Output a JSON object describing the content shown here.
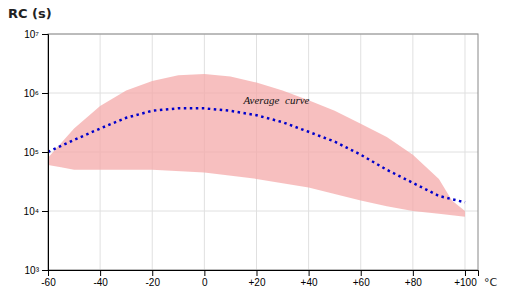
{
  "chart_data": {
    "type": "line",
    "title": "RC (s)",
    "xlabel": "°C",
    "log": "y",
    "grid": true,
    "xlim": [
      -60,
      105
    ],
    "ylim": [
      1000,
      10000000
    ],
    "xticks": [
      -60,
      -40,
      -20,
      0,
      {
        "value": 20,
        "label": "+20"
      },
      {
        "value": 40,
        "label": "+40"
      },
      {
        "value": 60,
        "label": "+60"
      },
      {
        "value": 80,
        "label": "+80"
      },
      {
        "value": 100,
        "label": "+100"
      }
    ],
    "yticks": [
      {
        "value": 1000,
        "label": "10³"
      },
      {
        "value": 10000,
        "label": "10⁴"
      },
      {
        "value": 100000,
        "label": "10⁵"
      },
      {
        "value": 1000000,
        "label": "10⁶"
      },
      {
        "value": 10000000,
        "label": "10⁷"
      }
    ],
    "series": [
      {
        "type": "band",
        "color": "#f4aaaa",
        "upper": {
          "x": [
            -60,
            -50,
            -40,
            -30,
            -20,
            -10,
            0,
            10,
            20,
            30,
            40,
            50,
            60,
            70,
            80,
            90,
            95,
            100
          ],
          "values": [
            80000,
            250000,
            600000,
            1100000,
            1600000,
            2000000,
            2100000,
            1900000,
            1500000,
            1100000,
            750000,
            500000,
            300000,
            180000,
            90000,
            35000,
            15000,
            10000
          ]
        },
        "lower": {
          "x": [
            -60,
            -55,
            -50,
            -40,
            -20,
            0,
            20,
            40,
            60,
            70,
            80,
            90,
            95,
            100
          ],
          "values": [
            60000,
            55000,
            50000,
            50000,
            50000,
            45000,
            35000,
            25000,
            15000,
            12000,
            10000,
            9000,
            8500,
            8000
          ]
        }
      },
      {
        "type": "line",
        "color": "#0000cc",
        "line_style": "dotted",
        "x": [
          -60,
          -50,
          -40,
          -30,
          -20,
          -10,
          0,
          10,
          20,
          30,
          40,
          50,
          60,
          70,
          80,
          90,
          100
        ],
        "values": [
          100000,
          160000,
          250000,
          380000,
          500000,
          550000,
          550000,
          500000,
          420000,
          320000,
          220000,
          150000,
          90000,
          50000,
          30000,
          18000,
          14000
        ]
      }
    ],
    "annotations": [
      {
        "text": "Average  curve",
        "x": 15,
        "y": 650000
      }
    ]
  }
}
